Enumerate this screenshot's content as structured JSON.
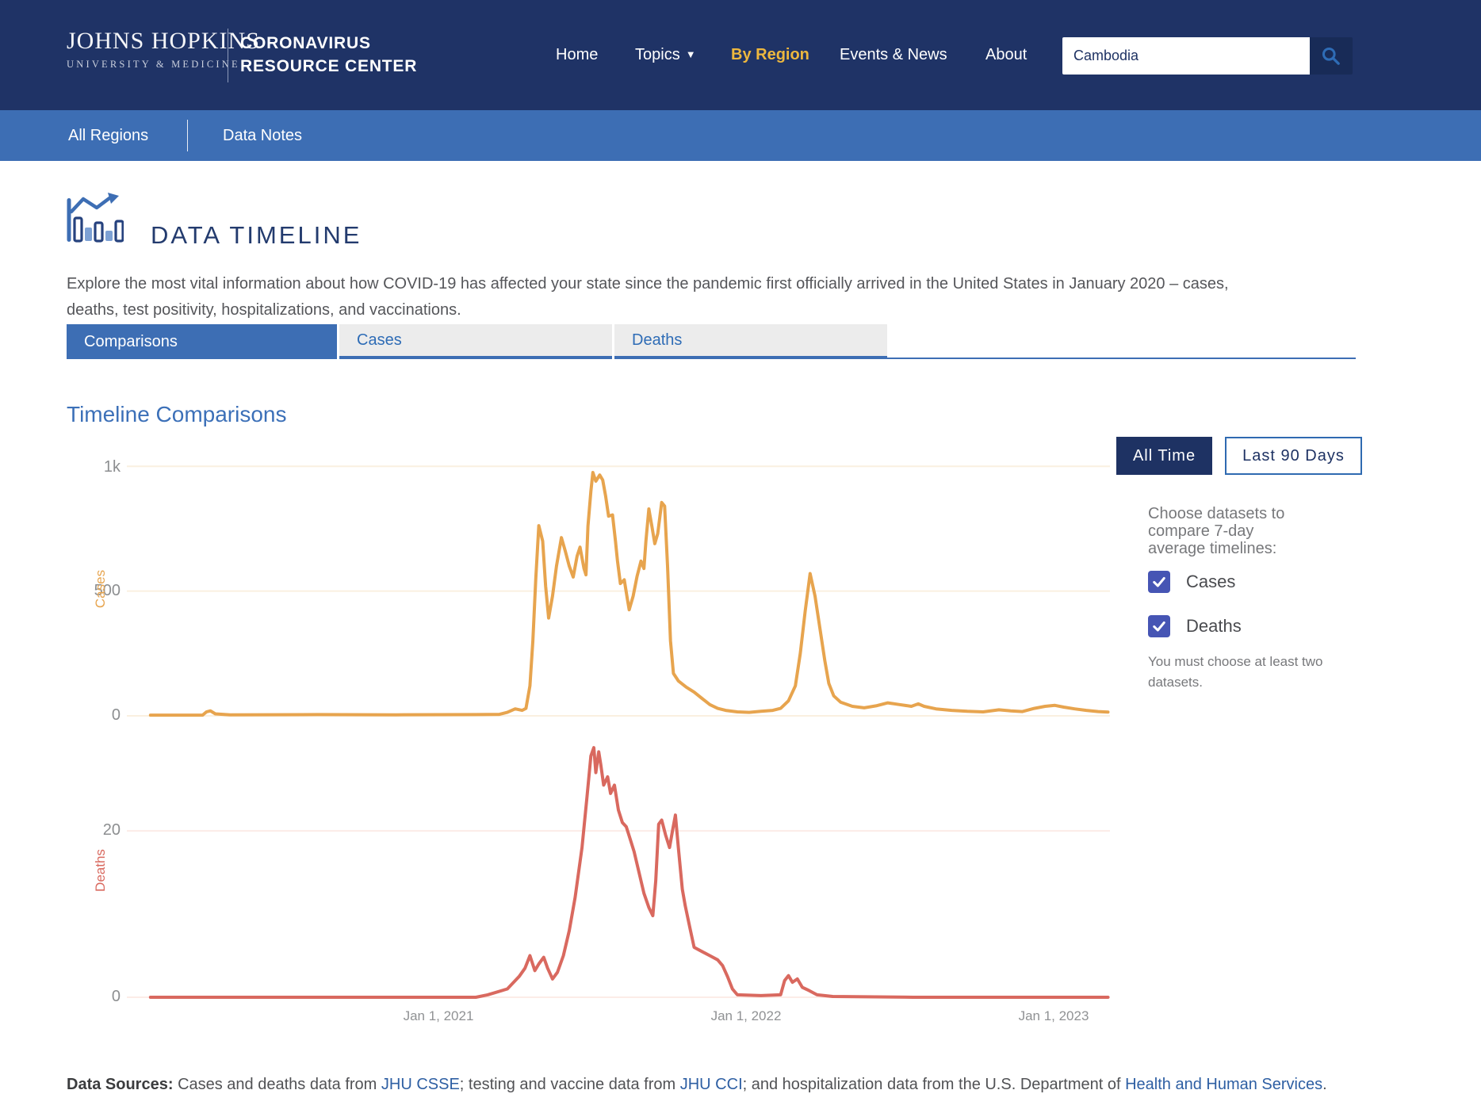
{
  "header": {
    "logo_primary": "JOHNS HOPKINS",
    "logo_secondary": "UNIVERSITY & MEDICINE",
    "wordmark_line1": "CORONAVIRUS",
    "wordmark_line2": "RESOURCE CENTER",
    "nav": [
      {
        "label": "Home"
      },
      {
        "label": "Topics"
      },
      {
        "label": "By Region"
      },
      {
        "label": "Events & News"
      },
      {
        "label": "About"
      }
    ],
    "topics_caret": "▼",
    "search": {
      "value": "Cambodia"
    }
  },
  "subnav": {
    "items": [
      {
        "label": "All Regions"
      },
      {
        "label": "Data Notes"
      }
    ]
  },
  "page": {
    "title": "DATA TIMELINE",
    "description": "Explore the most vital information about how COVID-19 has affected your state since the pandemic first officially arrived in the United States in January 2020 – cases,\ndeaths, test positivity, hospitalizations, and vaccinations.",
    "tabs": [
      {
        "label": "Comparisons",
        "active": true
      },
      {
        "label": "Cases",
        "active": false
      },
      {
        "label": "Deaths",
        "active": false
      }
    ],
    "section_title": "Timeline Comparisons"
  },
  "controls": {
    "time_buttons": [
      {
        "label": "All Time",
        "active": true
      },
      {
        "label": "Last 90 Days",
        "active": false
      }
    ],
    "datasets_prompt": "Choose datasets to\ncompare 7-day\naverage timelines:",
    "checkboxes": [
      {
        "label": "Cases",
        "checked": true
      },
      {
        "label": "Deaths",
        "checked": true
      }
    ],
    "note": "You must choose at least two\ndatasets."
  },
  "colors": {
    "header_navy": "#1F3366",
    "subnav_blue": "#3D6EB4",
    "accent_gold": "#EDB73E",
    "cases_orange": "#E7A44E",
    "deaths_red": "#D9695F",
    "checkbox_indigo": "#4655B4",
    "link_blue": "#2E5FA3"
  },
  "chart_data": [
    {
      "type": "line",
      "name": "Cases 7-day average",
      "ylabel": "Cases",
      "color": "#E7A44E",
      "grid_color": "#FAF0E0",
      "ylim": [
        0,
        1280
      ],
      "gridlines": [
        0,
        500,
        1000
      ],
      "yticks": [
        {
          "value": 0,
          "label": "0"
        },
        {
          "value": 500,
          "label": "500"
        },
        {
          "value": 1000,
          "label": "1k"
        }
      ],
      "x_axis": "time, Feb 2020 – Mar 2023 (shared with deaths chart)",
      "points": [
        [
          0.024,
          3
        ],
        [
          0.077,
          3
        ],
        [
          0.081,
          16
        ],
        [
          0.085,
          20
        ],
        [
          0.09,
          8
        ],
        [
          0.105,
          4
        ],
        [
          0.194,
          5
        ],
        [
          0.274,
          4
        ],
        [
          0.355,
          5
        ],
        [
          0.379,
          6
        ],
        [
          0.387,
          14
        ],
        [
          0.395,
          28
        ],
        [
          0.402,
          22
        ],
        [
          0.406,
          30
        ],
        [
          0.41,
          120
        ],
        [
          0.413,
          300
        ],
        [
          0.416,
          550
        ],
        [
          0.419,
          762
        ],
        [
          0.423,
          700
        ],
        [
          0.426,
          520
        ],
        [
          0.429,
          392
        ],
        [
          0.433,
          480
        ],
        [
          0.437,
          600
        ],
        [
          0.442,
          714
        ],
        [
          0.446,
          660
        ],
        [
          0.45,
          600
        ],
        [
          0.454,
          556
        ],
        [
          0.458,
          640
        ],
        [
          0.461,
          676
        ],
        [
          0.465,
          590
        ],
        [
          0.467,
          565
        ],
        [
          0.469,
          760
        ],
        [
          0.472,
          900
        ],
        [
          0.474,
          975
        ],
        [
          0.477,
          940
        ],
        [
          0.481,
          965
        ],
        [
          0.484,
          945
        ],
        [
          0.487,
          880
        ],
        [
          0.49,
          800
        ],
        [
          0.494,
          805
        ],
        [
          0.497,
          700
        ],
        [
          0.499,
          622
        ],
        [
          0.502,
          530
        ],
        [
          0.506,
          545
        ],
        [
          0.509,
          470
        ],
        [
          0.511,
          425
        ],
        [
          0.515,
          480
        ],
        [
          0.519,
          560
        ],
        [
          0.523,
          620
        ],
        [
          0.526,
          590
        ],
        [
          0.528,
          700
        ],
        [
          0.531,
          829
        ],
        [
          0.534,
          760
        ],
        [
          0.537,
          690
        ],
        [
          0.54,
          730
        ],
        [
          0.544,
          855
        ],
        [
          0.547,
          840
        ],
        [
          0.55,
          600
        ],
        [
          0.553,
          300
        ],
        [
          0.556,
          170
        ],
        [
          0.561,
          140
        ],
        [
          0.569,
          115
        ],
        [
          0.577,
          95
        ],
        [
          0.585,
          70
        ],
        [
          0.593,
          45
        ],
        [
          0.601,
          30
        ],
        [
          0.609,
          22
        ],
        [
          0.621,
          16
        ],
        [
          0.633,
          14
        ],
        [
          0.645,
          18
        ],
        [
          0.657,
          22
        ],
        [
          0.665,
          30
        ],
        [
          0.673,
          60
        ],
        [
          0.68,
          120
        ],
        [
          0.685,
          250
        ],
        [
          0.69,
          420
        ],
        [
          0.695,
          570
        ],
        [
          0.7,
          480
        ],
        [
          0.705,
          350
        ],
        [
          0.71,
          220
        ],
        [
          0.714,
          130
        ],
        [
          0.719,
          80
        ],
        [
          0.726,
          55
        ],
        [
          0.738,
          38
        ],
        [
          0.75,
          32
        ],
        [
          0.762,
          40
        ],
        [
          0.774,
          52
        ],
        [
          0.786,
          45
        ],
        [
          0.798,
          38
        ],
        [
          0.805,
          48
        ],
        [
          0.811,
          38
        ],
        [
          0.823,
          28
        ],
        [
          0.839,
          22
        ],
        [
          0.855,
          18
        ],
        [
          0.871,
          16
        ],
        [
          0.887,
          24
        ],
        [
          0.899,
          20
        ],
        [
          0.911,
          17
        ],
        [
          0.923,
          30
        ],
        [
          0.934,
          38
        ],
        [
          0.944,
          42
        ],
        [
          0.953,
          35
        ],
        [
          0.964,
          28
        ],
        [
          0.976,
          22
        ],
        [
          0.988,
          17
        ],
        [
          0.998,
          15
        ]
      ]
    },
    {
      "type": "line",
      "name": "Deaths 7-day average",
      "ylabel": "Deaths",
      "color": "#D9695F",
      "grid_color": "#FCECE7",
      "ylim": [
        0,
        30.3
      ],
      "gridlines": [
        0,
        20
      ],
      "yticks": [
        {
          "value": 0,
          "label": "0"
        },
        {
          "value": 20,
          "label": "20"
        }
      ],
      "x_ticks": [
        {
          "f": 0.317,
          "label": "Jan 1, 2021"
        },
        {
          "f": 0.63,
          "label": "Jan 1, 2022"
        },
        {
          "f": 0.943,
          "label": "Jan 1, 2023"
        }
      ],
      "points": [
        [
          0.024,
          0
        ],
        [
          0.3,
          0
        ],
        [
          0.355,
          0
        ],
        [
          0.367,
          0.3
        ],
        [
          0.387,
          1
        ],
        [
          0.399,
          2.5
        ],
        [
          0.405,
          3.5
        ],
        [
          0.41,
          5
        ],
        [
          0.415,
          3.2
        ],
        [
          0.419,
          4
        ],
        [
          0.424,
          4.8
        ],
        [
          0.428,
          3.5
        ],
        [
          0.433,
          2.2
        ],
        [
          0.438,
          3
        ],
        [
          0.444,
          5
        ],
        [
          0.45,
          8
        ],
        [
          0.456,
          12
        ],
        [
          0.463,
          18
        ],
        [
          0.468,
          24
        ],
        [
          0.472,
          29
        ],
        [
          0.475,
          30
        ],
        [
          0.477,
          27
        ],
        [
          0.48,
          29.5
        ],
        [
          0.482,
          28
        ],
        [
          0.485,
          25.5
        ],
        [
          0.489,
          26.5
        ],
        [
          0.492,
          24.5
        ],
        [
          0.496,
          25.5
        ],
        [
          0.5,
          22.5
        ],
        [
          0.504,
          21
        ],
        [
          0.508,
          20.5
        ],
        [
          0.512,
          19
        ],
        [
          0.516,
          17.5
        ],
        [
          0.521,
          15
        ],
        [
          0.526,
          12.5
        ],
        [
          0.531,
          10.8
        ],
        [
          0.535,
          9.8
        ],
        [
          0.538,
          14
        ],
        [
          0.541,
          20.8
        ],
        [
          0.544,
          21.3
        ],
        [
          0.548,
          19.5
        ],
        [
          0.552,
          18
        ],
        [
          0.555,
          20
        ],
        [
          0.558,
          21.9
        ],
        [
          0.561,
          18
        ],
        [
          0.565,
          13
        ],
        [
          0.568,
          11
        ],
        [
          0.573,
          8.2
        ],
        [
          0.577,
          6
        ],
        [
          0.585,
          5.5
        ],
        [
          0.593,
          5
        ],
        [
          0.601,
          4.5
        ],
        [
          0.606,
          3.8
        ],
        [
          0.611,
          2.5
        ],
        [
          0.616,
          1
        ],
        [
          0.621,
          0.3
        ],
        [
          0.645,
          0.2
        ],
        [
          0.665,
          0.3
        ],
        [
          0.669,
          2
        ],
        [
          0.673,
          2.6
        ],
        [
          0.677,
          1.8
        ],
        [
          0.682,
          2.2
        ],
        [
          0.687,
          1.2
        ],
        [
          0.694,
          0.8
        ],
        [
          0.702,
          0.3
        ],
        [
          0.718,
          0.1
        ],
        [
          0.8,
          0
        ],
        [
          0.9,
          0
        ],
        [
          0.998,
          0
        ]
      ]
    }
  ],
  "footer": {
    "segments": [
      {
        "text": "Data Sources: ",
        "style": "bold"
      },
      {
        "text": "Cases and deaths data from "
      },
      {
        "text": "JHU CSSE",
        "style": "link"
      },
      {
        "text": "; testing and vaccine data from "
      },
      {
        "text": "JHU CCI",
        "style": "link"
      },
      {
        "text": "; and hospitalization data from the U.S. Department of "
      },
      {
        "text": "Health and Human Services",
        "style": "link"
      },
      {
        "text": "."
      }
    ]
  }
}
